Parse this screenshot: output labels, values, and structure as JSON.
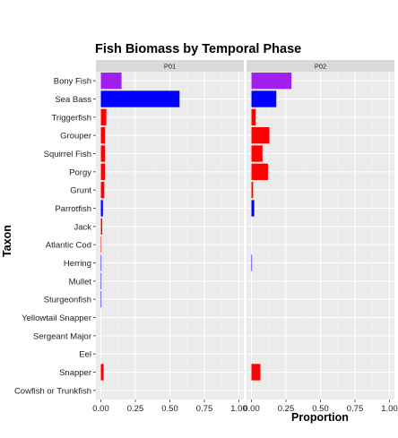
{
  "chart_data": {
    "type": "bar",
    "orientation": "horizontal",
    "title": "Fish Biomass by Temporal Phase",
    "xlabel": "Proportion",
    "ylabel": "Taxon",
    "xlim": [
      0,
      1
    ],
    "xticks": [
      "0.00",
      "0.25",
      "0.50",
      "0.75",
      "1.00"
    ],
    "grid": true,
    "legend": "none",
    "categories": [
      "Bony Fish",
      "Sea Bass",
      "Triggerfish",
      "Grouper",
      "Squirrel Fish",
      "Porgy",
      "Grunt",
      "Parrotfish",
      "Jack",
      "Atlantic Cod",
      "Herring",
      "Mullet",
      "Sturgeonfish",
      "Yellowtail Snapper",
      "Sergeant Major",
      "Eel",
      "Snapper",
      "Cowfish or Trunkfish"
    ],
    "bar_colors": [
      "#a020f0",
      "#0000ff",
      "#ff0000",
      "#ff0000",
      "#ff0000",
      "#ff0000",
      "#ff0000",
      "#0000ff",
      "#ff0000",
      "#ff0000",
      "#0000ff",
      "#0000ff",
      "#0000ff",
      "#ff0000",
      "#0000ff",
      "#0000ff",
      "#ff0000",
      "#ff0000"
    ],
    "series": [
      {
        "facet": "P01",
        "values": [
          0.15,
          0.57,
          0.04,
          0.03,
          0.03,
          0.03,
          0.025,
          0.015,
          0.01,
          0.004,
          0.003,
          0.003,
          0.003,
          0,
          0,
          0,
          0.02,
          0
        ]
      },
      {
        "facet": "P02",
        "values": [
          0.29,
          0.18,
          0.03,
          0.13,
          0.08,
          0.12,
          0.012,
          0.02,
          0,
          0,
          0.002,
          0,
          0,
          0,
          0,
          0,
          0.065,
          0
        ]
      }
    ]
  }
}
